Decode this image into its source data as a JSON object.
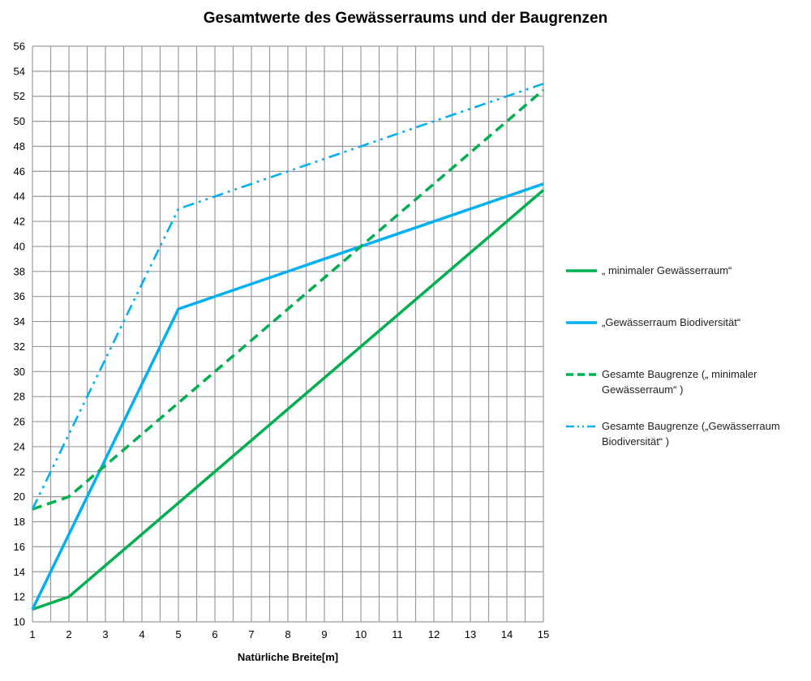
{
  "chart_data": {
    "type": "line",
    "title": "Gesamtwerte des Gewässerraums und der Baugrenzen",
    "xlabel": "Natürliche Breite[m]",
    "ylabel": "",
    "xlim": [
      1,
      15
    ],
    "ylim": [
      10,
      56
    ],
    "x_ticks": [
      1,
      2,
      3,
      4,
      5,
      6,
      7,
      8,
      9,
      10,
      11,
      12,
      13,
      14,
      15
    ],
    "y_ticks": [
      10,
      12,
      14,
      16,
      18,
      20,
      22,
      24,
      26,
      28,
      30,
      32,
      34,
      36,
      38,
      40,
      42,
      44,
      46,
      48,
      50,
      52,
      54,
      56
    ],
    "grid": true,
    "legend_position": "right",
    "series": [
      {
        "name": "„ minimaler Gewässerraum“",
        "color": "#00b050",
        "dash": "solid",
        "points": [
          [
            1,
            11
          ],
          [
            2,
            12
          ],
          [
            15,
            44.5
          ]
        ]
      },
      {
        "name": "„Gewässerraum Biodiversität“",
        "color": "#00b0f0",
        "dash": "solid",
        "points": [
          [
            1,
            11
          ],
          [
            5,
            35
          ],
          [
            15,
            45
          ]
        ]
      },
      {
        "name": "Gesamte Baugrenze („ minimaler Gewässerraum“ )",
        "color": "#00b050",
        "dash": "dashed",
        "points": [
          [
            1,
            19
          ],
          [
            2,
            20
          ],
          [
            15,
            52.5
          ]
        ]
      },
      {
        "name": "Gesamte Baugrenze („Gewässerraum Biodiversität“ )",
        "color": "#00b0f0",
        "dash": "dashdotdot",
        "points": [
          [
            1,
            19
          ],
          [
            5,
            43
          ],
          [
            15,
            53
          ]
        ]
      }
    ]
  }
}
